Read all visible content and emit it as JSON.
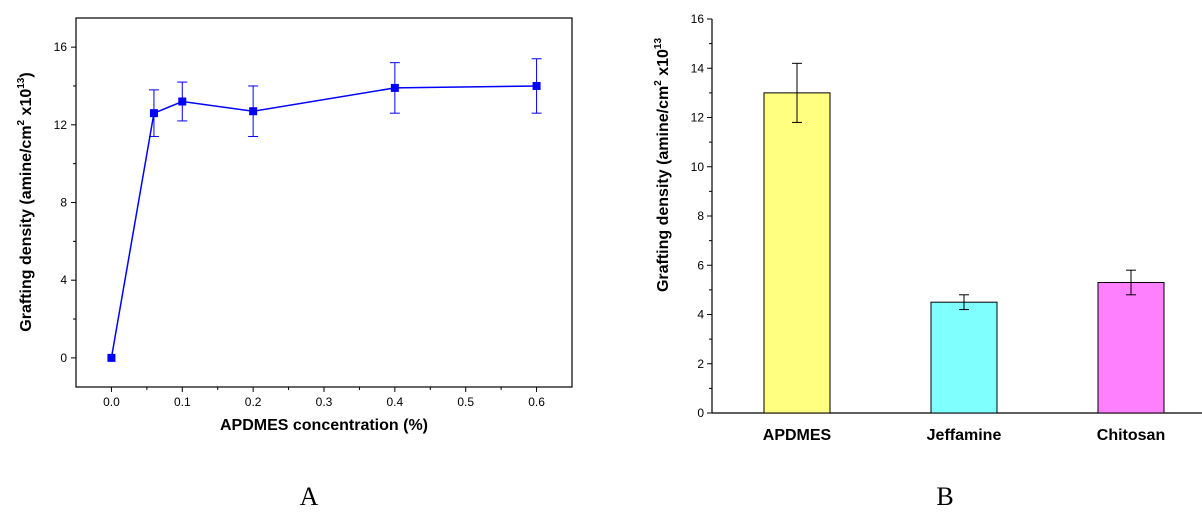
{
  "chart_data": [
    {
      "type": "line",
      "panel_label": "A",
      "xlabel": "APDMES concentration (%)",
      "ylabel_main": "Grafting density (amine/cm",
      "ylabel_sup1": "2",
      "ylabel_mid": " x10",
      "ylabel_sup2": "13",
      "ylabel_end": ")",
      "xlim": [
        -0.05,
        0.65
      ],
      "ylim": [
        -1.5,
        17.5
      ],
      "xticks": [
        "0.0",
        "0.1",
        "0.2",
        "0.3",
        "0.4",
        "0.5",
        "0.6"
      ],
      "yticks": [
        "0",
        "4",
        "8",
        "12",
        "16"
      ],
      "color": "#0000ff",
      "grid": false,
      "series": [
        {
          "x": [
            0.0,
            0.06,
            0.1,
            0.2,
            0.4,
            0.6
          ],
          "y": [
            0.0,
            12.6,
            13.2,
            12.7,
            13.9,
            14.0
          ],
          "err": [
            0.0,
            1.2,
            1.0,
            1.3,
            1.3,
            1.4
          ]
        }
      ]
    },
    {
      "type": "bar",
      "panel_label": "B",
      "categories": [
        "APDMES",
        "Jeffamine",
        "Chitosan"
      ],
      "values": [
        13.0,
        4.5,
        5.3
      ],
      "err": [
        1.2,
        0.3,
        0.5
      ],
      "colors": [
        "#ffff80",
        "#80ffff",
        "#ff80ff"
      ],
      "ylabel_main": "Grafting density (amine/cm",
      "ylabel_sup1": "2",
      "ylabel_mid": " x10",
      "ylabel_sup2": "13",
      "ylim": [
        0,
        16
      ],
      "yticks": [
        "0",
        "2",
        "4",
        "6",
        "8",
        "10",
        "12",
        "14",
        "16"
      ],
      "grid": false
    }
  ]
}
